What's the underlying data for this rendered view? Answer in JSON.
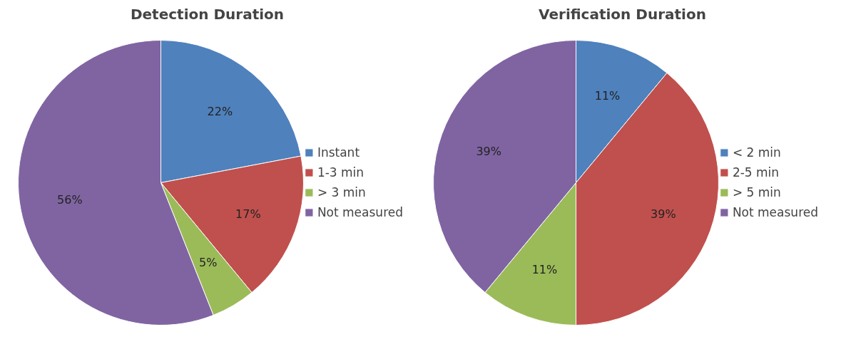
{
  "chart_data": [
    {
      "type": "pie",
      "title": "Detection Duration",
      "categories": [
        "Instant",
        "1-3 min",
        "> 3 min",
        "Not measured"
      ],
      "values": [
        22,
        17,
        5,
        56
      ],
      "value_labels": [
        "22%",
        "17%",
        "5%",
        "56%"
      ],
      "colors": [
        "#4f81bd",
        "#c0504d",
        "#9bbb59",
        "#8064a2"
      ],
      "legend": "right"
    },
    {
      "type": "pie",
      "title": "Verification Duration",
      "categories": [
        "< 2 min",
        "2-5 min",
        "> 5 min",
        "Not measured"
      ],
      "values": [
        11,
        39,
        11,
        39
      ],
      "value_labels": [
        "11%",
        "39%",
        "11%",
        "39%"
      ],
      "colors": [
        "#4f81bd",
        "#c0504d",
        "#9bbb59",
        "#8064a2"
      ],
      "legend": "right"
    }
  ]
}
